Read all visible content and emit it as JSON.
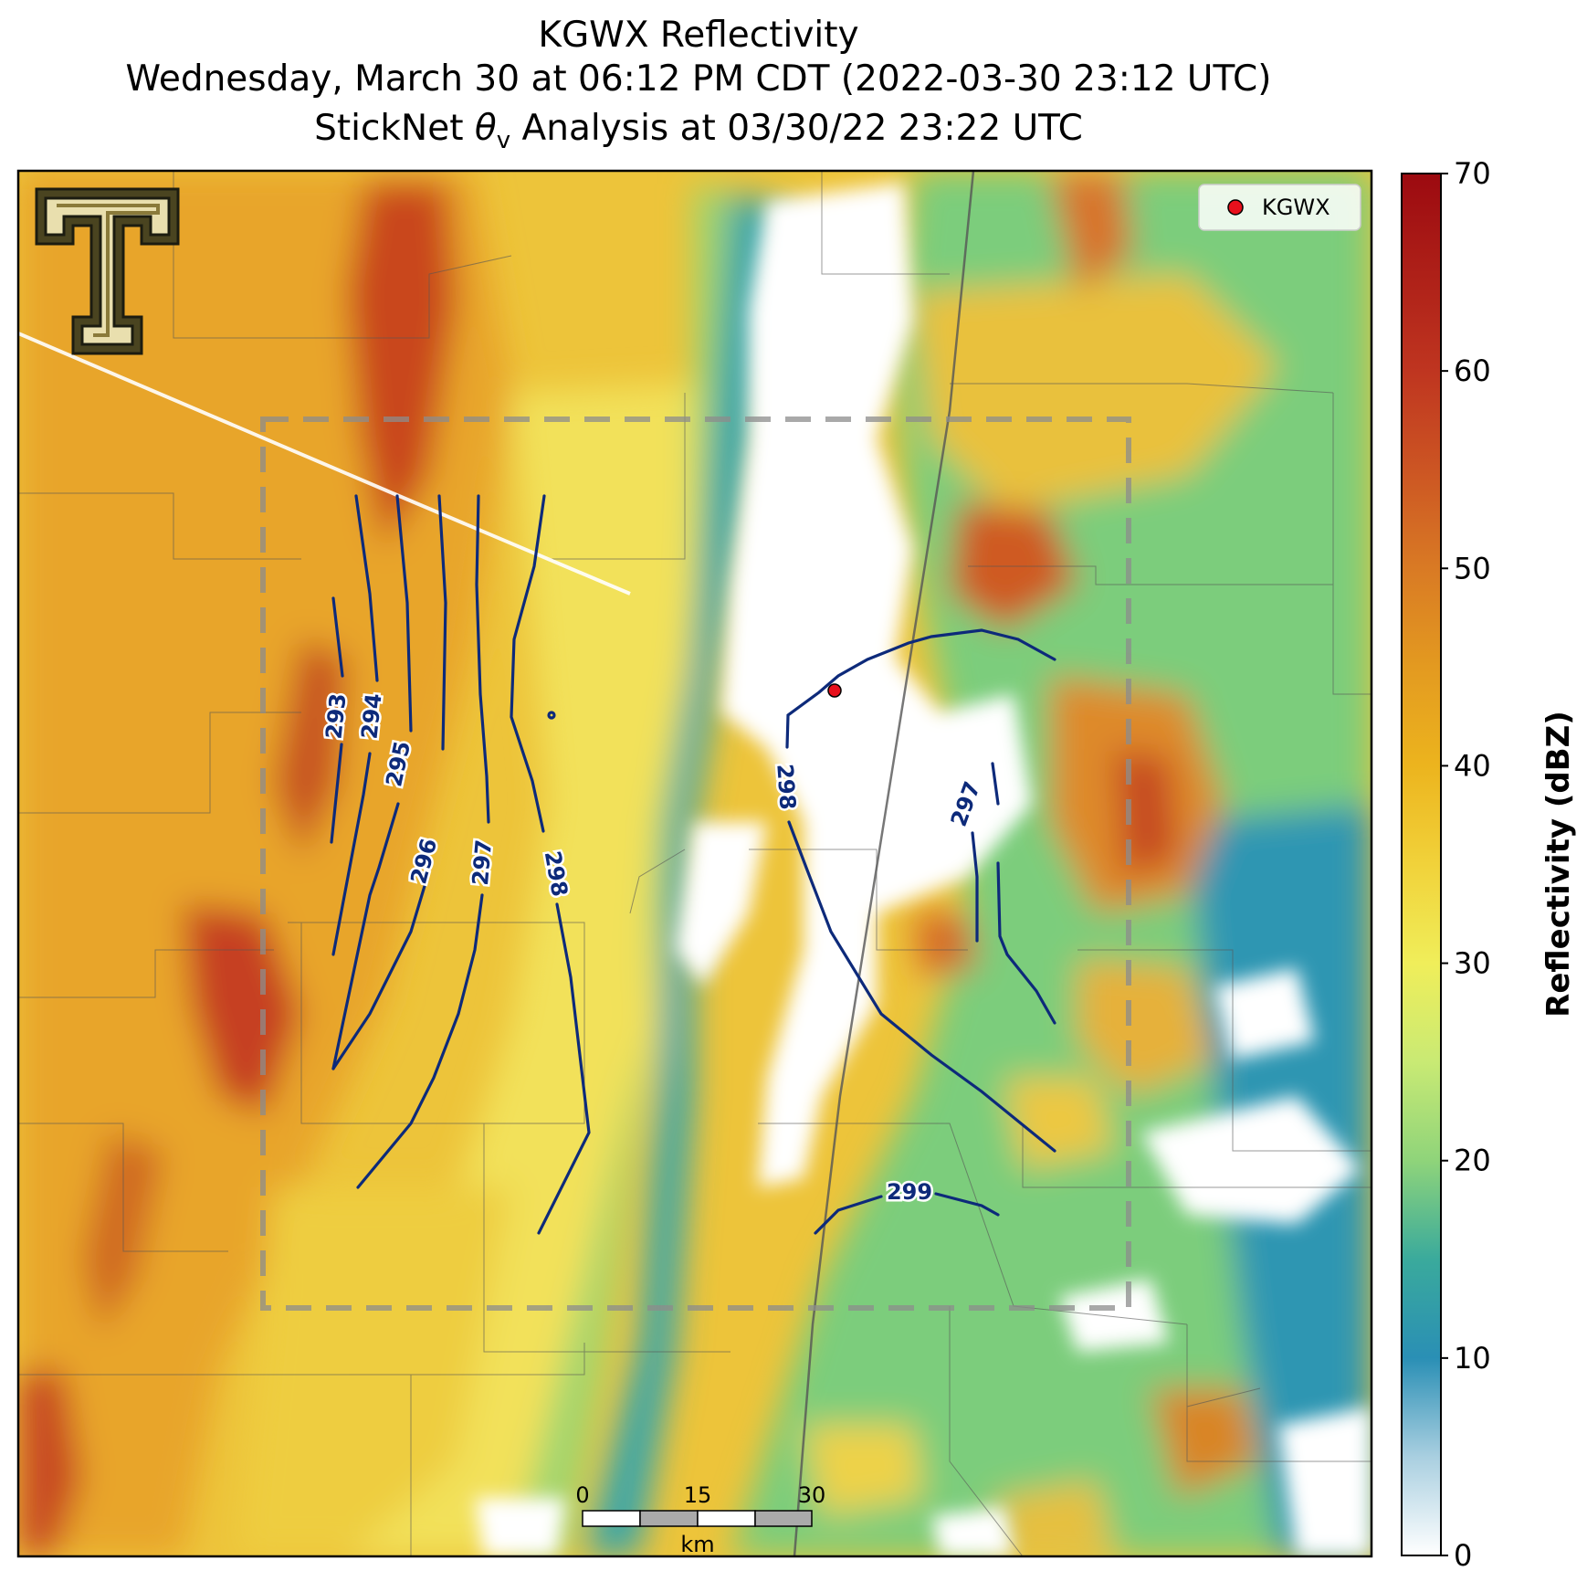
{
  "title": {
    "line1": "KGWX Reflectivity",
    "line2": "Wednesday, March 30 at 06:12 PM CDT (2022-03-30 23:12 UTC)",
    "line3_prefix": "StickNet ",
    "line3_symbol": "θ",
    "line3_subscript": "v",
    "line3_suffix": " Analysis at 03/30/22 23:22 UTC"
  },
  "legend": {
    "label": "KGWX",
    "marker_color": "#e8101c"
  },
  "colorbar": {
    "title": "Reflectivity (dBZ)",
    "ticks": [
      "0",
      "10",
      "20",
      "30",
      "40",
      "50",
      "60",
      "70"
    ],
    "range": [
      0,
      70
    ],
    "stops": [
      {
        "value": 0,
        "color": "#ffffff"
      },
      {
        "value": 5,
        "color": "#a9cfe0"
      },
      {
        "value": 10,
        "color": "#2a8fb5"
      },
      {
        "value": 15,
        "color": "#3aaa9c"
      },
      {
        "value": 20,
        "color": "#8fd47a"
      },
      {
        "value": 25,
        "color": "#c9ea74"
      },
      {
        "value": 30,
        "color": "#f0ee5a"
      },
      {
        "value": 35,
        "color": "#f1d23a"
      },
      {
        "value": 40,
        "color": "#ecb41e"
      },
      {
        "value": 45,
        "color": "#e39a20"
      },
      {
        "value": 50,
        "color": "#d97a24"
      },
      {
        "value": 55,
        "color": "#cc5523"
      },
      {
        "value": 60,
        "color": "#bf3520"
      },
      {
        "value": 70,
        "color": "#9c0a10"
      }
    ]
  },
  "contour_labels": [
    "293",
    "294",
    "295",
    "296",
    "297",
    "298",
    "298",
    "297",
    "299"
  ],
  "scale_bar": {
    "ticks": [
      "0",
      "15",
      "30"
    ],
    "unit": "km"
  },
  "logo": {
    "name": "Texas Tech Double T"
  }
}
